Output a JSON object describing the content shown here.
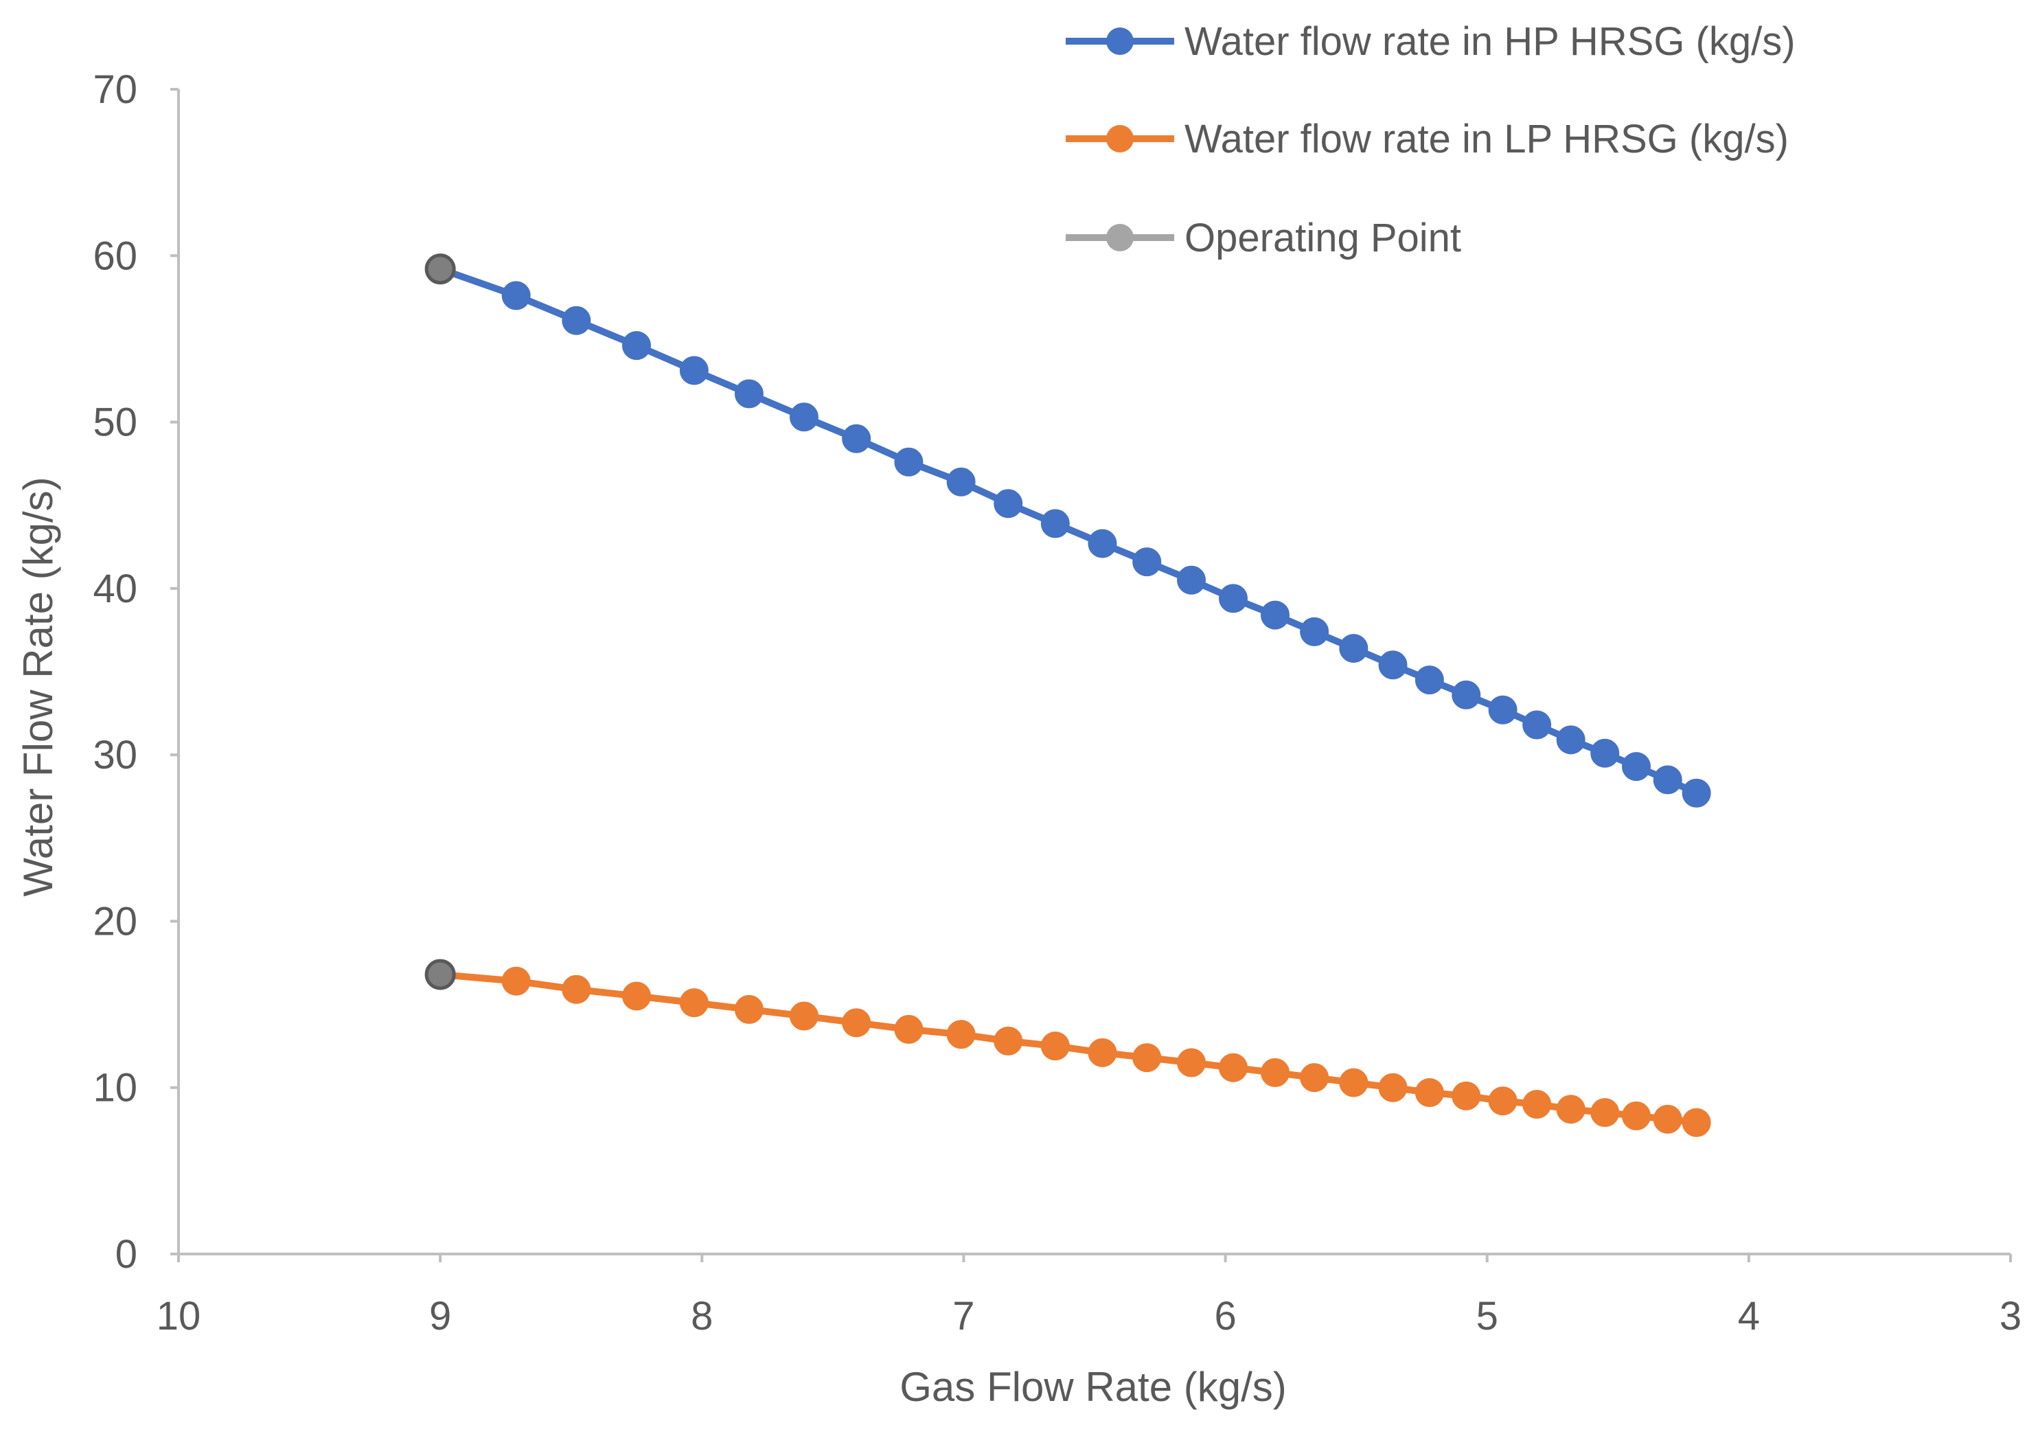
{
  "chart_data": {
    "type": "line",
    "title": "",
    "xlabel": "Gas Flow Rate (kg/s)",
    "ylabel": "Water Flow Rate (kg/s)",
    "xlim": [
      10,
      3
    ],
    "ylim": [
      0,
      70
    ],
    "x_ticks": [
      "10",
      "9",
      "8",
      "7",
      "6",
      "5",
      "4",
      "3"
    ],
    "x_tick_values": [
      10,
      9,
      8,
      7,
      6,
      5,
      4,
      3
    ],
    "y_ticks": [
      "0",
      "10",
      "20",
      "30",
      "40",
      "50",
      "60",
      "70"
    ],
    "y_tick_values": [
      0,
      10,
      20,
      30,
      40,
      50,
      60,
      70
    ],
    "grid": false,
    "legend_position": "top-right",
    "series": [
      {
        "name": "Water flow rate in HP HRSG (kg/s)",
        "color": "#4472C4",
        "x": [
          9.0,
          8.71,
          8.48,
          8.25,
          8.03,
          7.82,
          7.61,
          7.41,
          7.21,
          7.01,
          6.83,
          6.65,
          6.47,
          6.3,
          6.13,
          5.97,
          5.81,
          5.66,
          5.51,
          5.36,
          5.22,
          5.08,
          4.94,
          4.81,
          4.68,
          4.55,
          4.43,
          4.31,
          4.2
        ],
        "values": [
          59.2,
          57.6,
          56.1,
          54.6,
          53.1,
          51.7,
          50.3,
          49.0,
          47.6,
          46.4,
          45.1,
          43.9,
          42.7,
          41.6,
          40.5,
          39.4,
          38.4,
          37.4,
          36.4,
          35.4,
          34.5,
          33.6,
          32.7,
          31.8,
          30.9,
          30.1,
          29.3,
          28.5,
          27.7
        ]
      },
      {
        "name": "Water flow rate in LP HRSG (kg/s)",
        "color": "#ED7D31",
        "x": [
          9.0,
          8.71,
          8.48,
          8.25,
          8.03,
          7.82,
          7.61,
          7.41,
          7.21,
          7.01,
          6.83,
          6.65,
          6.47,
          6.3,
          6.13,
          5.97,
          5.81,
          5.66,
          5.51,
          5.36,
          5.22,
          5.08,
          4.94,
          4.81,
          4.68,
          4.55,
          4.43,
          4.31,
          4.2
        ],
        "values": [
          16.8,
          16.4,
          15.9,
          15.5,
          15.1,
          14.7,
          14.3,
          13.9,
          13.5,
          13.2,
          12.8,
          12.5,
          12.1,
          11.8,
          11.5,
          11.2,
          10.9,
          10.6,
          10.3,
          10.0,
          9.7,
          9.5,
          9.2,
          9.0,
          8.7,
          8.5,
          8.3,
          8.1,
          7.9
        ]
      },
      {
        "name": "Operating Point",
        "color": "#A5A5A5",
        "x": [
          9.0,
          9.0
        ],
        "values": [
          59.2,
          16.8
        ]
      }
    ]
  }
}
